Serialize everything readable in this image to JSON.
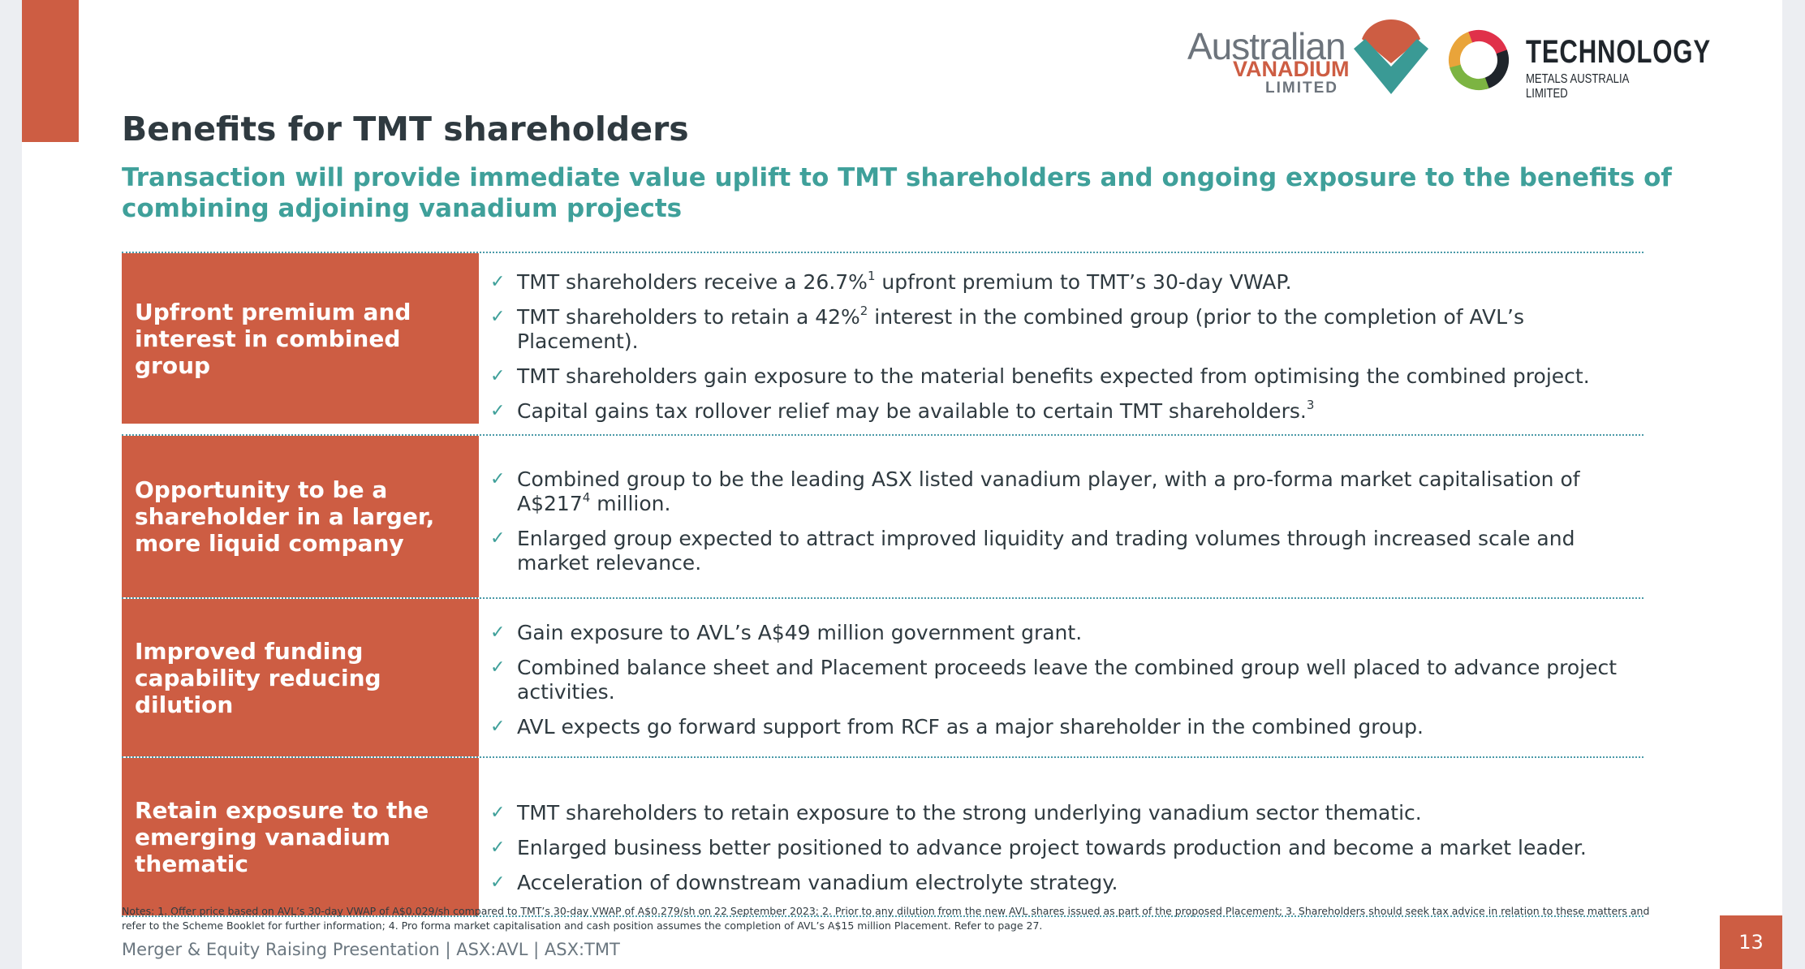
{
  "logos": {
    "avl": {
      "word": "Australian",
      "vanadium": "VANADIUM",
      "limited": "LIMITED"
    },
    "tmt": {
      "word": "TECHNOLOGY",
      "sub": "METALS AUSTRALIA LIMITED"
    }
  },
  "title": "Benefits for TMT shareholders",
  "subtitle": "Transaction will provide immediate value uplift to TMT shareholders and ongoing exposure to the benefits of combining adjoining vanadium projects",
  "check_mark": "✓",
  "rows": [
    {
      "label": "Upfront premium and interest in combined group",
      "items": [
        {
          "pre": "TMT shareholders receive a 26.7%",
          "sup": "1",
          "post": " upfront premium to TMT’s 30-day VWAP."
        },
        {
          "pre": "TMT shareholders to retain a 42%",
          "sup": "2",
          "post": " interest in the combined group (prior to the completion of AVL’s Placement)."
        },
        {
          "pre": "TMT shareholders gain exposure to the material benefits expected from optimising the combined project.",
          "sup": "",
          "post": ""
        },
        {
          "pre": "Capital gains tax rollover relief may be available to certain TMT shareholders.",
          "sup": "3",
          "post": ""
        }
      ]
    },
    {
      "label": "Opportunity to be a shareholder in a larger, more liquid company",
      "items": [
        {
          "pre": "Combined group to be the leading ASX listed vanadium player, with a pro-forma market capitalisation of A$217",
          "sup": "4",
          "post": " million."
        },
        {
          "pre": "Enlarged group expected to attract improved liquidity and trading volumes through increased scale and market relevance.",
          "sup": "",
          "post": ""
        }
      ]
    },
    {
      "label": "Improved funding capability reducing dilution",
      "items": [
        {
          "pre": "Gain exposure to AVL’s A$49 million government grant.",
          "sup": "",
          "post": ""
        },
        {
          "pre": "Combined balance sheet and Placement proceeds leave the combined group well placed to advance project activities.",
          "sup": "",
          "post": ""
        },
        {
          "pre": "AVL expects go forward support from RCF as a major shareholder in the combined group.",
          "sup": "",
          "post": ""
        }
      ]
    },
    {
      "label": "Retain exposure to the emerging vanadium thematic",
      "items": [
        {
          "pre": "TMT shareholders to retain exposure to the strong underlying vanadium sector thematic.",
          "sup": "",
          "post": ""
        },
        {
          "pre": "Enlarged business better positioned to advance project towards production and become a market leader.",
          "sup": "",
          "post": ""
        },
        {
          "pre": "Acceleration of downstream vanadium electrolyte strategy.",
          "sup": "",
          "post": ""
        }
      ]
    }
  ],
  "notes": "Notes: 1. Offer price based on AVL’s 30-day VWAP of A$0.029/sh compared to TMT’s 30-day VWAP of A$0.279/sh on 22 September 2023; 2. Prior to any dilution from the new AVL shares issued as part of the proposed Placement; 3. Shareholders should seek tax advice in relation to these matters and refer to the Scheme Booklet for further information; 4. Pro forma market capitalisation and cash position assumes the completion of AVL’s A$15 million Placement. Refer to page 27.",
  "footer": "Merger & Equity Raising Presentation | ASX:AVL | ASX:TMT",
  "page_number": "13",
  "colors": {
    "accent": "#cd5d43",
    "teal": "#3fa09a",
    "heading": "#2f3a40"
  }
}
